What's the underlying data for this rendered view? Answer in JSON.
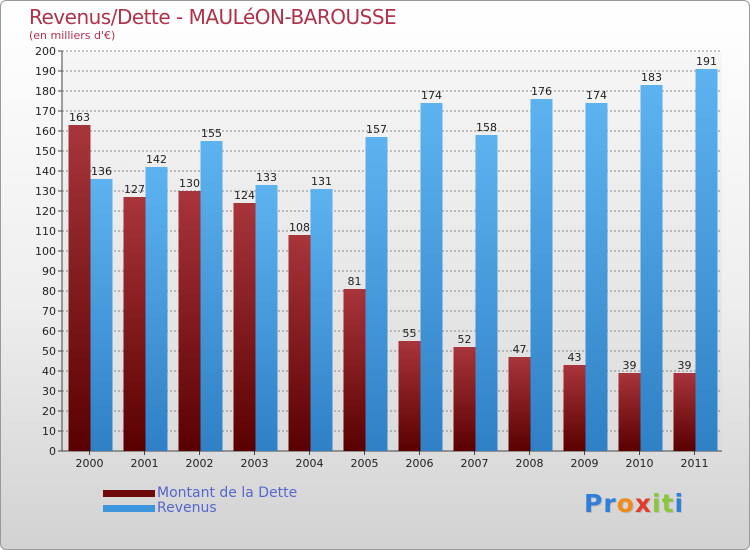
{
  "title": "Revenus/Dette - MAULéON-BAROUSSE",
  "subtitle": "(en milliers d'€)",
  "legend": {
    "dette_label": "Montant de la Dette",
    "revenus_label": "Revenus"
  },
  "logo": {
    "letters": [
      "P",
      "r",
      "o",
      "x",
      "i",
      "t",
      "i"
    ],
    "colors": [
      "#2f7fd8",
      "#2f7fd8",
      "#f08a1a",
      "#e03c2c",
      "#8cc63e",
      "#8cc63e",
      "#2f7fd8"
    ]
  },
  "colors": {
    "dette": "#6e0a0a",
    "revenus": "#3d96dd"
  },
  "chart_data": {
    "type": "bar",
    "title": "Revenus/Dette - MAULéON-BAROUSSE",
    "ylabel": "(en milliers d'€)",
    "ylim": [
      0,
      200
    ],
    "ytick_step": 10,
    "grid": true,
    "categories": [
      "2000",
      "2001",
      "2002",
      "2003",
      "2004",
      "2005",
      "2006",
      "2007",
      "2008",
      "2009",
      "2010",
      "2011"
    ],
    "series": [
      {
        "name": "Montant de la Dette",
        "values": [
          163,
          127,
          130,
          124,
          108,
          81,
          55,
          52,
          47,
          43,
          39,
          39
        ]
      },
      {
        "name": "Revenus",
        "values": [
          136,
          142,
          155,
          133,
          131,
          157,
          174,
          158,
          176,
          174,
          183,
          191
        ]
      }
    ]
  }
}
